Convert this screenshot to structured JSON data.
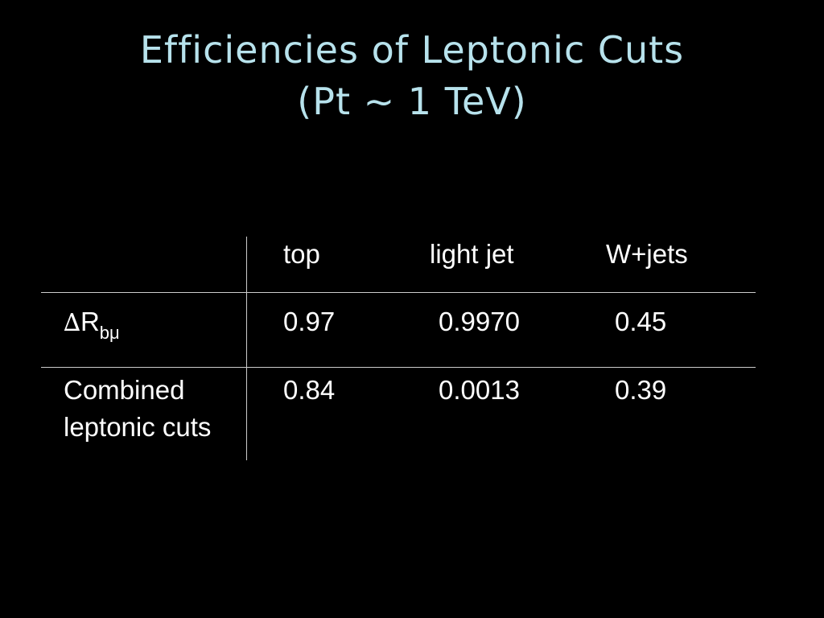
{
  "slide": {
    "title_line1": "Efficiencies of Leptonic Cuts",
    "title_line2": "(Pt ~ 1 TeV)",
    "accent_color": "#b7e2ec",
    "background_color": "#000000"
  },
  "table": {
    "columns": [
      "top",
      "light jet",
      "W+jets"
    ],
    "rows": [
      {
        "label_symbol": "∆",
        "label_main": "R",
        "label_sub": "bμ",
        "values": [
          "0.97",
          "0.9970",
          "0.45"
        ]
      },
      {
        "label_line1": "Combined",
        "label_line2": "leptonic cuts",
        "values": [
          "0.84",
          "0.0013",
          "0.39"
        ]
      }
    ]
  }
}
